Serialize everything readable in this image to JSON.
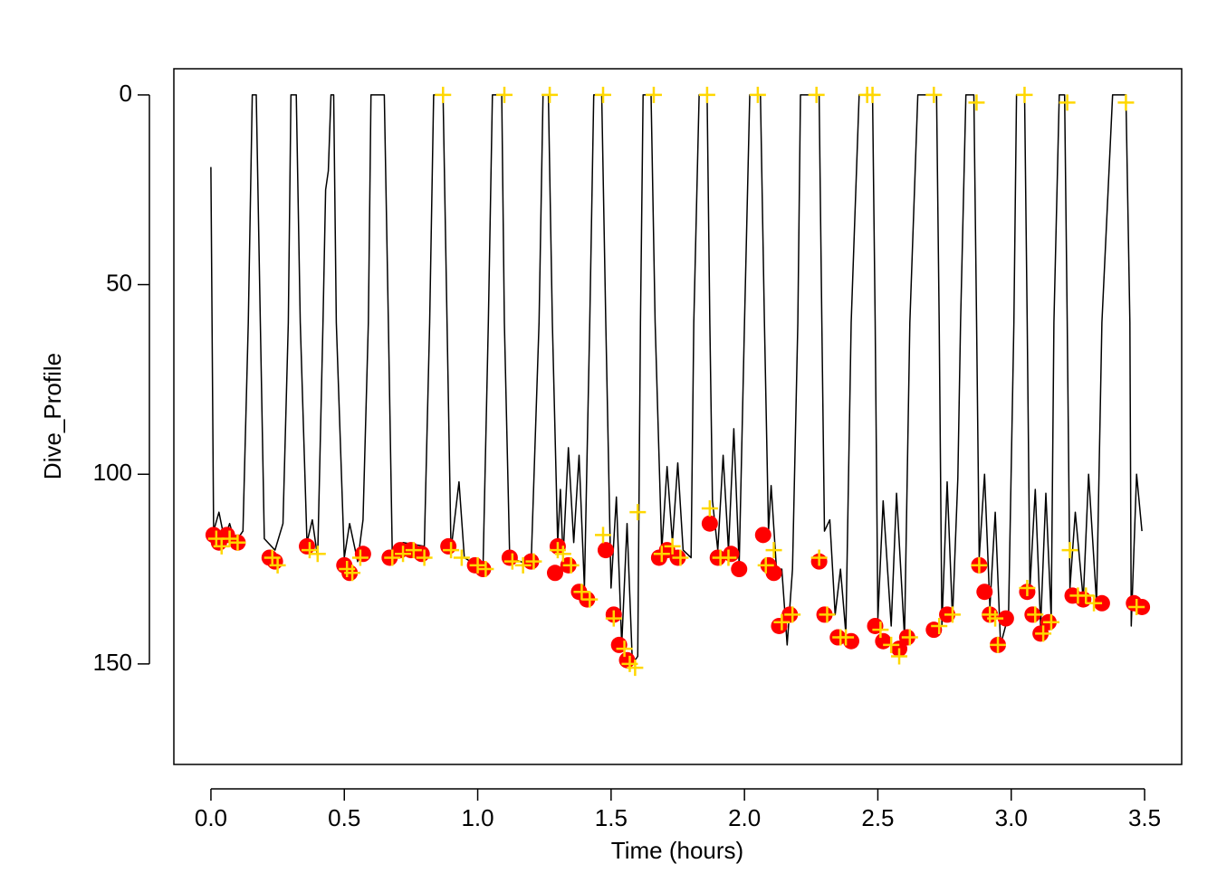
{
  "chart_data": {
    "type": "line",
    "xlabel": "Time (hours)",
    "ylabel": "Dive_Profile",
    "xlim": [
      -0.139,
      3.639
    ],
    "ylim": [
      -6.9,
      176.5
    ],
    "y_reversed": true,
    "xticks": [
      {
        "value": 0,
        "label": "0.0"
      },
      0.5,
      {
        "value": 1,
        "label": "1.0"
      },
      1.5,
      {
        "value": 2,
        "label": "2.0"
      },
      2.5,
      {
        "value": 3,
        "label": "3.0"
      },
      3.5
    ],
    "yticks": [
      0,
      50,
      100,
      150
    ],
    "color": "#000000",
    "x": [
      0.0,
      0.01,
      0.03,
      0.05,
      0.07,
      0.09,
      0.12,
      0.14,
      0.155,
      0.17,
      0.185,
      0.2,
      0.24,
      0.27,
      0.29,
      0.3,
      0.32,
      0.335,
      0.36,
      0.38,
      0.4,
      0.42,
      0.43,
      0.44,
      0.45,
      0.46,
      0.47,
      0.5,
      0.52,
      0.55,
      0.57,
      0.59,
      0.6,
      0.65,
      0.665,
      0.68,
      0.72,
      0.8,
      0.82,
      0.835,
      0.87,
      0.885,
      0.9,
      0.93,
      0.95,
      1.02,
      1.04,
      1.055,
      1.09,
      1.1,
      1.12,
      1.2,
      1.23,
      1.245,
      1.265,
      1.28,
      1.3,
      1.31,
      1.32,
      1.34,
      1.36,
      1.38,
      1.4,
      1.42,
      1.435,
      1.465,
      1.48,
      1.5,
      1.52,
      1.54,
      1.56,
      1.58,
      1.6,
      1.61,
      1.62,
      1.65,
      1.665,
      1.69,
      1.71,
      1.73,
      1.75,
      1.77,
      1.8,
      1.81,
      1.83,
      1.86,
      1.87,
      1.88,
      1.9,
      1.92,
      1.94,
      1.96,
      1.98,
      2.0,
      2.02,
      2.06,
      2.075,
      2.09,
      2.1,
      2.12,
      2.14,
      2.16,
      2.18,
      2.2,
      2.21,
      2.28,
      2.29,
      2.3,
      2.32,
      2.34,
      2.36,
      2.38,
      2.4,
      2.43,
      2.48,
      2.49,
      2.5,
      2.52,
      2.55,
      2.57,
      2.6,
      2.62,
      2.65,
      2.72,
      2.73,
      2.74,
      2.76,
      2.78,
      2.8,
      2.81,
      2.83,
      2.86,
      2.87,
      2.88,
      2.9,
      2.92,
      2.94,
      2.96,
      2.99,
      3.01,
      3.02,
      3.05,
      3.06,
      3.07,
      3.09,
      3.11,
      3.13,
      3.15,
      3.16,
      3.18,
      3.2,
      3.21,
      3.22,
      3.24,
      3.27,
      3.29,
      3.32,
      3.34,
      3.38,
      3.43,
      3.445,
      3.45,
      3.47,
      3.49
    ],
    "values": [
      19,
      115,
      110,
      117,
      113,
      118,
      115,
      60,
      0,
      0,
      60,
      117,
      120,
      113,
      60,
      0,
      0,
      60,
      118,
      112,
      122,
      60,
      25,
      20,
      0,
      0,
      60,
      122,
      113,
      123,
      112,
      60,
      0,
      0,
      60,
      122,
      118,
      119,
      60,
      0,
      0,
      60,
      120,
      102,
      122,
      125,
      60,
      0,
      0,
      60,
      122,
      124,
      60,
      0,
      0,
      60,
      118,
      104,
      122,
      93,
      118,
      95,
      130,
      60,
      0,
      0,
      60,
      130,
      106,
      145,
      113,
      150,
      148,
      60,
      0,
      0,
      60,
      120,
      98,
      118,
      97,
      120,
      122,
      60,
      0,
      0,
      60,
      107,
      120,
      95,
      120,
      88,
      124,
      60,
      0,
      0,
      60,
      115,
      103,
      125,
      125,
      145,
      125,
      60,
      0,
      0,
      60,
      115,
      112,
      137,
      125,
      142,
      60,
      0,
      0,
      60,
      138,
      107,
      140,
      105,
      143,
      60,
      0,
      0,
      60,
      140,
      102,
      138,
      101,
      60,
      0,
      0,
      60,
      122,
      100,
      135,
      110,
      145,
      137,
      60,
      0,
      0,
      60,
      130,
      104,
      140,
      105,
      138,
      60,
      0,
      0,
      60,
      130,
      110,
      133,
      100,
      134,
      60,
      0,
      0,
      60,
      140,
      100,
      115
    ],
    "overlays": [
      {
        "type": "scatter",
        "marker": "circle",
        "color": "#ff0000",
        "x": [
          0.01,
          0.03,
          0.06,
          0.1,
          0.22,
          0.24,
          0.36,
          0.5,
          0.52,
          0.57,
          0.67,
          0.71,
          0.75,
          0.79,
          0.89,
          0.99,
          1.02,
          1.12,
          1.2,
          1.29,
          1.3,
          1.34,
          1.38,
          1.41,
          1.48,
          1.51,
          1.53,
          1.56,
          1.68,
          1.71,
          1.75,
          1.87,
          1.9,
          1.95,
          1.98,
          2.07,
          2.09,
          2.11,
          2.13,
          2.17,
          2.28,
          2.3,
          2.35,
          2.4,
          2.49,
          2.52,
          2.58,
          2.61,
          2.71,
          2.76,
          2.88,
          2.9,
          2.92,
          2.95,
          2.98,
          3.06,
          3.08,
          3.11,
          3.14,
          3.23,
          3.27,
          3.34,
          3.46,
          3.49
        ],
        "values": [
          116,
          118,
          116,
          118,
          122,
          123,
          119,
          124,
          126,
          121,
          122,
          120,
          120,
          121,
          119,
          124,
          125,
          122,
          123,
          126,
          119,
          124,
          131,
          133,
          120,
          137,
          145,
          149,
          122,
          120,
          122,
          113,
          122,
          121,
          125,
          116,
          124,
          126,
          140,
          137,
          123,
          137,
          143,
          144,
          140,
          144,
          146,
          143,
          141,
          137,
          124,
          131,
          137,
          145,
          138,
          131,
          137,
          142,
          139,
          132,
          133,
          134,
          134,
          135
        ]
      },
      {
        "type": "scatter",
        "marker": "plus",
        "color": "#ffd700",
        "x": [
          0.02,
          0.04,
          0.07,
          0.1,
          0.23,
          0.25,
          0.37,
          0.4,
          0.51,
          0.53,
          0.56,
          0.68,
          0.72,
          0.76,
          0.8,
          0.87,
          0.9,
          0.94,
          1.0,
          1.03,
          1.1,
          1.13,
          1.17,
          1.21,
          1.27,
          1.3,
          1.32,
          1.35,
          1.39,
          1.42,
          1.47,
          1.47,
          1.51,
          1.55,
          1.57,
          1.59,
          1.6,
          1.66,
          1.69,
          1.73,
          1.76,
          1.86,
          1.87,
          1.91,
          1.94,
          2.05,
          2.08,
          2.11,
          2.14,
          2.18,
          2.27,
          2.28,
          2.31,
          2.36,
          2.38,
          2.46,
          2.48,
          2.51,
          2.55,
          2.58,
          2.62,
          2.71,
          2.73,
          2.78,
          2.87,
          2.88,
          2.92,
          2.94,
          2.95,
          3.05,
          3.06,
          3.09,
          3.12,
          3.15,
          3.21,
          3.22,
          3.25,
          3.28,
          3.31,
          3.43,
          3.47
        ],
        "values": [
          117,
          119,
          117,
          118,
          122,
          124,
          120,
          121,
          125,
          126,
          122,
          122,
          121,
          120,
          122,
          0,
          120,
          122,
          124,
          125,
          0,
          123,
          124,
          123,
          0,
          120,
          121,
          124,
          131,
          133,
          0,
          116,
          138,
          146,
          150,
          151,
          110,
          0,
          121,
          119,
          122,
          0,
          109,
          122,
          122,
          0,
          124,
          120,
          139,
          137,
          0,
          122,
          137,
          143,
          143,
          0,
          0,
          141,
          145,
          148,
          143,
          0,
          140,
          137,
          2,
          124,
          137,
          138,
          145,
          0,
          130,
          137,
          142,
          139,
          2,
          120,
          132,
          132,
          134,
          2,
          135
        ]
      }
    ]
  }
}
